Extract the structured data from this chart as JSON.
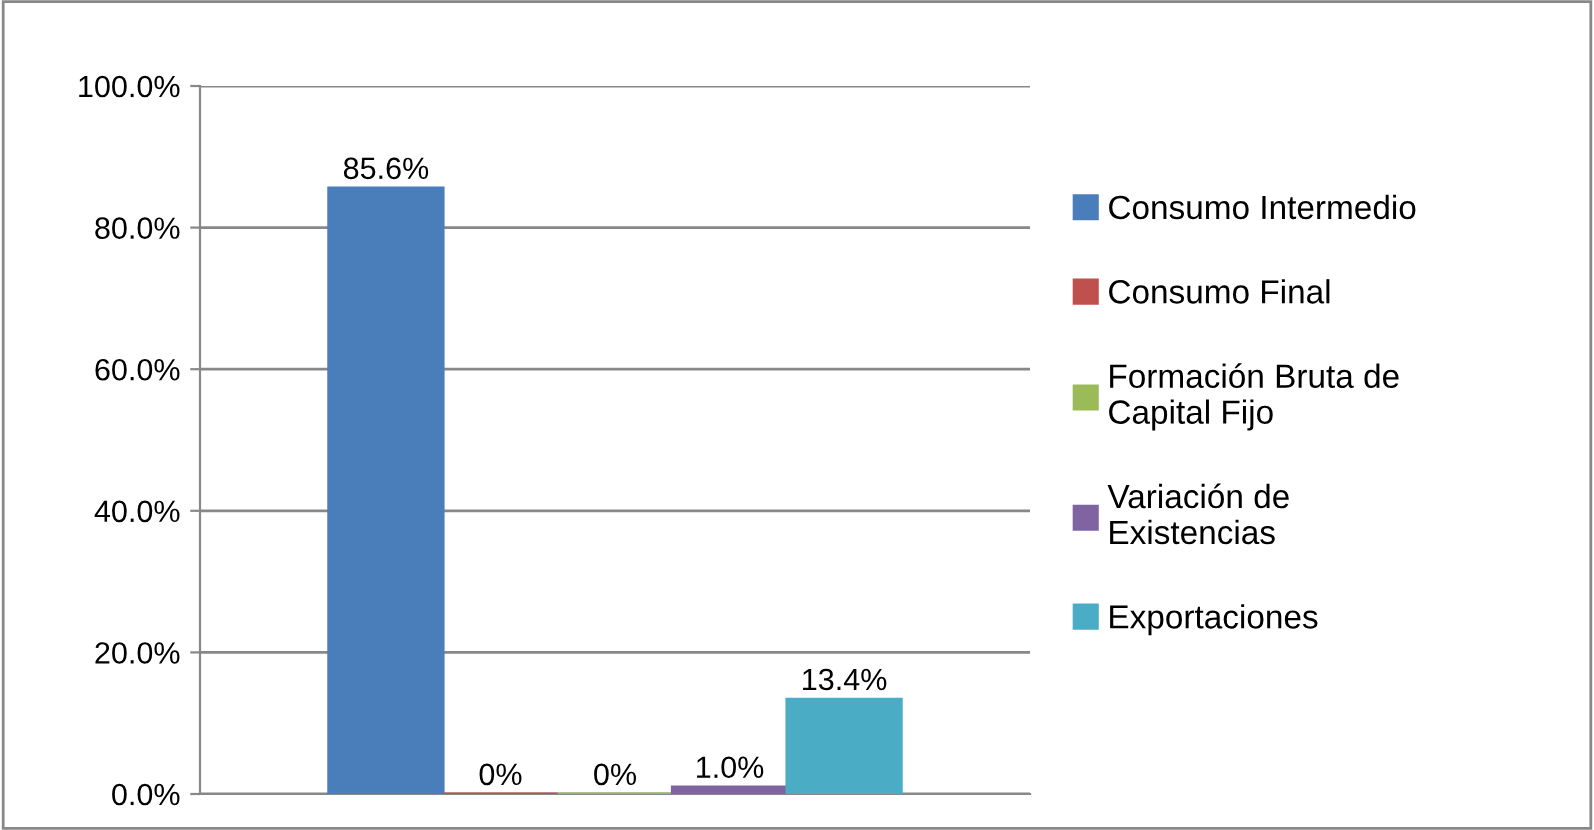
{
  "chart_data": {
    "type": "bar",
    "categories": [
      null
    ],
    "series": [
      {
        "name": "Consumo Intermedio",
        "color": "#4a7ebb",
        "values": [
          85.6
        ],
        "value_labels": [
          "85.6%"
        ]
      },
      {
        "name": "Consumo Final",
        "color": "#c0504d",
        "values": [
          0
        ],
        "value_labels": [
          "0%"
        ]
      },
      {
        "name": "Formación Bruta de\nCapital Fijo",
        "color": "#9bbb59",
        "values": [
          0
        ],
        "value_labels": [
          "0%"
        ]
      },
      {
        "name": "Variación de\nExistencias",
        "color": "#8064a2",
        "values": [
          1.0
        ],
        "value_labels": [
          "1.0%"
        ]
      },
      {
        "name": "Exportaciones",
        "color": "#4bacc6",
        "values": [
          13.4
        ],
        "value_labels": [
          "13.4%"
        ]
      }
    ],
    "ylim": [
      0,
      100
    ],
    "yticks": [
      {
        "value": 0,
        "label": "0.0%"
      },
      {
        "value": 20,
        "label": "20.0%"
      },
      {
        "value": 40,
        "label": "40.0%"
      },
      {
        "value": 60,
        "label": "60.0%"
      },
      {
        "value": 80,
        "label": "80.0%"
      },
      {
        "value": 100,
        "label": "100.0%"
      }
    ],
    "grid": "y",
    "legend": "right"
  }
}
